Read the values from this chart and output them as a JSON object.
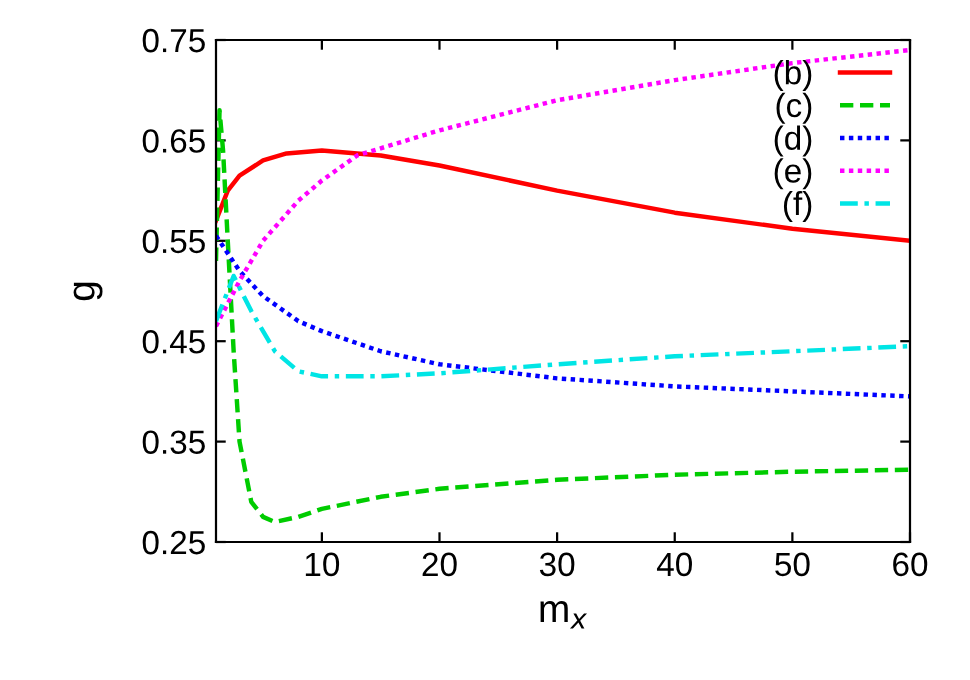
{
  "chart_data": {
    "type": "line",
    "xlabel": "m$_{x}$",
    "ylabel": "g",
    "xlim": [
      1,
      60
    ],
    "ylim": [
      0.25,
      0.75
    ],
    "xticks": [
      10,
      20,
      30,
      40,
      50,
      60
    ],
    "yticks": [
      0.25,
      0.35,
      0.45,
      0.55,
      0.65,
      0.75
    ],
    "legend": "top right",
    "grid": false,
    "series": [
      {
        "name": "(b)",
        "color": "#ff0000",
        "line_style": "solid",
        "x": [
          1,
          2,
          3,
          5,
          7,
          10,
          15,
          20,
          30,
          40,
          50,
          60
        ],
        "values": [
          0.57,
          0.6,
          0.615,
          0.63,
          0.637,
          0.64,
          0.635,
          0.625,
          0.6,
          0.578,
          0.562,
          0.55
        ]
      },
      {
        "name": "(c)",
        "color": "#00cc00",
        "line_style": "dashed",
        "x": [
          1,
          1.3,
          1.6,
          2,
          2.5,
          3,
          4,
          5,
          6,
          8,
          10,
          15,
          20,
          30,
          40,
          50,
          60
        ],
        "values": [
          0.53,
          0.68,
          0.64,
          0.55,
          0.44,
          0.35,
          0.29,
          0.275,
          0.27,
          0.275,
          0.283,
          0.295,
          0.303,
          0.312,
          0.317,
          0.32,
          0.322
        ]
      },
      {
        "name": "(d)",
        "color": "#0000ff",
        "line_style": "dotted",
        "x": [
          1,
          3,
          5,
          8,
          10,
          15,
          20,
          30,
          40,
          50,
          60
        ],
        "values": [
          0.555,
          0.52,
          0.495,
          0.47,
          0.46,
          0.44,
          0.427,
          0.413,
          0.405,
          0.4,
          0.395
        ]
      },
      {
        "name": "(e)",
        "color": "#ff00ff",
        "line_style": "dotted",
        "x": [
          1,
          3,
          5,
          8,
          10,
          13,
          20,
          30,
          40,
          50,
          60
        ],
        "values": [
          0.465,
          0.51,
          0.55,
          0.59,
          0.61,
          0.635,
          0.66,
          0.69,
          0.71,
          0.727,
          0.74
        ]
      },
      {
        "name": "(f)",
        "color": "#00e5e5",
        "line_style": "dashdot",
        "x": [
          1,
          2.5,
          4,
          6,
          8,
          10,
          15,
          20,
          30,
          40,
          50,
          60
        ],
        "values": [
          0.47,
          0.515,
          0.48,
          0.44,
          0.42,
          0.415,
          0.415,
          0.418,
          0.427,
          0.435,
          0.44,
          0.445
        ]
      }
    ]
  }
}
